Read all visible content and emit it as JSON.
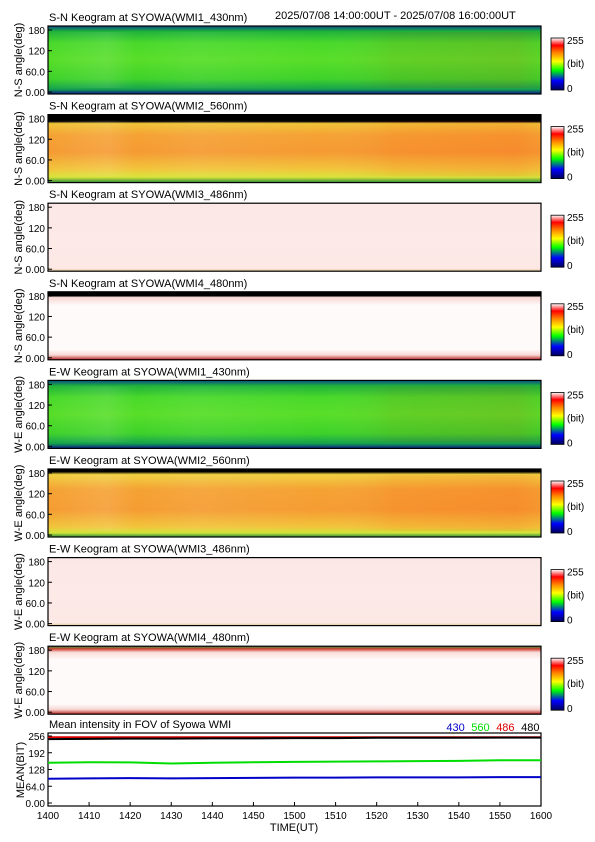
{
  "header": {
    "time_range": "2025/07/08 14:00:00UT - 2025/07/08 16:00:00UT"
  },
  "keogram_axis": {
    "ticks": [
      "0.00",
      "60.0",
      "120",
      "180"
    ],
    "first_panel_ticks": [
      "0.00",
      "60.0",
      "120",
      "180"
    ]
  },
  "colorbar": {
    "min_label": "0",
    "max_label": "255",
    "unit_label": "(bit)",
    "stops": [
      "#00005a",
      "#0000ff",
      "#00ff00",
      "#ffff00",
      "#ff8000",
      "#ff0000",
      "#ffffff"
    ]
  },
  "keograms": [
    {
      "title": "S-N Keogram at SYOWA(WMI1_430nm)",
      "ylabel": "N-S angle(deg)",
      "fill": "green",
      "level": 0.38
    },
    {
      "title": "S-N Keogram at SYOWA(WMI2_560nm)",
      "ylabel": "N-S angle(deg)",
      "fill": "orange",
      "level": 0.68
    },
    {
      "title": "S-N Keogram at SYOWA(WMI3_486nm)",
      "ylabel": "N-S angle(deg)",
      "fill": "pink",
      "level": 0.97
    },
    {
      "title": "S-N Keogram at SYOWA(WMI4_480nm)",
      "ylabel": "N-S angle(deg)",
      "fill": "white",
      "level": 0.99
    },
    {
      "title": "E-W Keogram at SYOWA(WMI1_430nm)",
      "ylabel": "W-E angle(deg)",
      "fill": "green",
      "level": 0.38
    },
    {
      "title": "E-W Keogram at SYOWA(WMI2_560nm)",
      "ylabel": "W-E angle(deg)",
      "fill": "orange",
      "level": 0.68
    },
    {
      "title": "E-W Keogram at SYOWA(WMI3_486nm)",
      "ylabel": "W-E angle(deg)",
      "fill": "pink",
      "level": 0.97
    },
    {
      "title": "E-W Keogram at SYOWA(WMI4_480nm)",
      "ylabel": "W-E angle(deg)",
      "fill": "white",
      "level": 0.99
    }
  ],
  "chart_data": {
    "type": "line",
    "title": "Mean intensity in FOV of Syowa WMI",
    "xlabel": "TIME(UT)",
    "ylabel": "MEAN(BIT)",
    "x": [
      "1400",
      "1410",
      "1420",
      "1430",
      "1440",
      "1450",
      "1500",
      "1510",
      "1520",
      "1530",
      "1540",
      "1550",
      "1600"
    ],
    "xlim": [
      1400,
      1600
    ],
    "ylim": [
      0,
      256
    ],
    "yticks": [
      "0.00",
      "64.0",
      "128",
      "192",
      "256"
    ],
    "legend_position": "top-right",
    "series": [
      {
        "name": "430",
        "color": "#0000c8",
        "values": [
          93,
          94,
          95,
          94,
          95,
          96,
          97,
          97,
          98,
          98,
          98,
          99,
          99
        ]
      },
      {
        "name": "560",
        "color": "#00dd00",
        "values": [
          154,
          156,
          155,
          151,
          154,
          156,
          157,
          158,
          159,
          160,
          161,
          163,
          163
        ]
      },
      {
        "name": "486",
        "color": "#dd0000",
        "values": [
          251,
          251,
          251,
          251,
          251,
          251,
          251,
          251,
          251,
          251,
          251,
          251,
          251
        ]
      },
      {
        "name": "480",
        "color": "#000000",
        "values": [
          244,
          245,
          246,
          246,
          247,
          247,
          248,
          248,
          249,
          249,
          249,
          250,
          250
        ]
      }
    ]
  }
}
